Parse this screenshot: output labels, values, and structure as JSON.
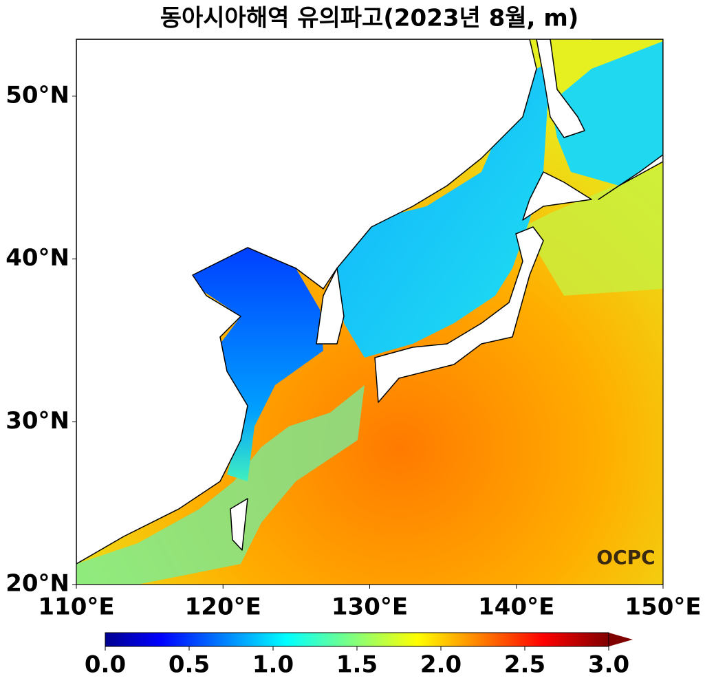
{
  "title": "동아시아해역 유의파고(2023년 8월, m)",
  "map": {
    "lonlim": [
      110,
      150
    ],
    "latlim": [
      20,
      53.5
    ],
    "lonticks": [
      {
        "value": 110,
        "label": "110°E"
      },
      {
        "value": 120,
        "label": "120°E"
      },
      {
        "value": 130,
        "label": "130°E"
      },
      {
        "value": 140,
        "label": "140°E"
      },
      {
        "value": 150,
        "label": "150°E"
      }
    ],
    "latticks": [
      {
        "value": 20,
        "label": "20°N"
      },
      {
        "value": 30,
        "label": "30°N"
      },
      {
        "value": 40,
        "label": "40°N"
      },
      {
        "value": 50,
        "label": "50°N"
      }
    ],
    "colorbar": {
      "lim": [
        0,
        3
      ],
      "ticks": [
        {
          "value": 0,
          "label": "0.0"
        },
        0.5,
        {
          "value": 1,
          "label": "1.0"
        },
        1.5,
        {
          "value": 2,
          "label": "2.0"
        },
        2.5,
        {
          "value": 3,
          "label": "3.0"
        }
      ]
    },
    "logo": "OCPC"
  }
}
